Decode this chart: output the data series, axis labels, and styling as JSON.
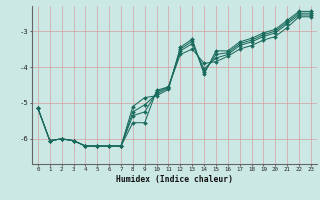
{
  "xlabel": "Humidex (Indice chaleur)",
  "xlim": [
    -0.5,
    23.5
  ],
  "ylim": [
    -6.7,
    -2.3
  ],
  "yticks": [
    -6,
    -5,
    -4,
    -3
  ],
  "xticks": [
    0,
    1,
    2,
    3,
    4,
    5,
    6,
    7,
    8,
    9,
    10,
    11,
    12,
    13,
    14,
    15,
    16,
    17,
    18,
    19,
    20,
    21,
    22,
    23
  ],
  "bg_color": "#cce8e4",
  "grid_color": "#d4a0a0",
  "line_color": "#1a6b5e",
  "lines": {
    "x": [
      0,
      1,
      2,
      3,
      4,
      5,
      6,
      7,
      8,
      9,
      10,
      11,
      12,
      13,
      14,
      15,
      16,
      17,
      18,
      19,
      20,
      21,
      22,
      23
    ],
    "y1": [
      -5.15,
      -6.05,
      -6.0,
      -6.05,
      -6.2,
      -6.2,
      -6.2,
      -6.2,
      -5.55,
      -5.55,
      -4.65,
      -4.55,
      -3.65,
      -3.5,
      -3.9,
      -3.85,
      -3.7,
      -3.5,
      -3.4,
      -3.25,
      -3.15,
      -2.9,
      -2.6,
      -2.6
    ],
    "y2": [
      -5.15,
      -6.05,
      -6.0,
      -6.05,
      -6.2,
      -6.2,
      -6.2,
      -6.2,
      -5.35,
      -5.25,
      -4.7,
      -4.55,
      -3.55,
      -3.35,
      -4.05,
      -3.75,
      -3.65,
      -3.4,
      -3.3,
      -3.15,
      -3.05,
      -2.8,
      -2.55,
      -2.55
    ],
    "y3": [
      -5.15,
      -6.05,
      -6.0,
      -6.05,
      -6.2,
      -6.2,
      -6.2,
      -6.2,
      -5.25,
      -5.05,
      -4.75,
      -4.58,
      -3.5,
      -3.28,
      -4.15,
      -3.65,
      -3.6,
      -3.35,
      -3.25,
      -3.1,
      -3.0,
      -2.75,
      -2.5,
      -2.5
    ],
    "y4": [
      -5.15,
      -6.05,
      -6.0,
      -6.05,
      -6.2,
      -6.2,
      -6.2,
      -6.2,
      -5.1,
      -4.85,
      -4.8,
      -4.62,
      -3.45,
      -3.22,
      -4.2,
      -3.55,
      -3.55,
      -3.3,
      -3.2,
      -3.05,
      -2.95,
      -2.7,
      -2.45,
      -2.45
    ]
  },
  "marker": "D",
  "markersize": 2.0,
  "linewidth": 0.75
}
